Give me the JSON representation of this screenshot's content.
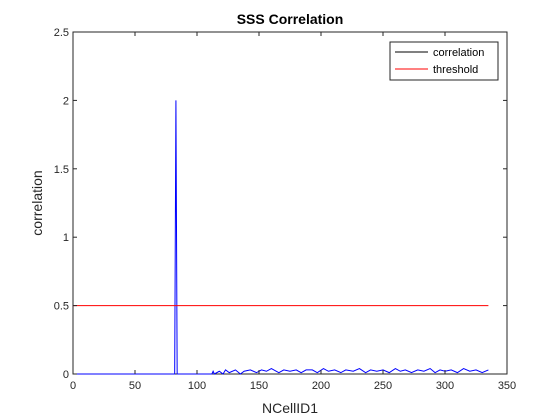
{
  "chart_data": {
    "type": "line",
    "title": "SSS Correlation",
    "xlabel": "NCellID1",
    "ylabel": "correlation",
    "xlim": [
      0,
      350
    ],
    "ylim": [
      0,
      2.5
    ],
    "xticks": [
      0,
      50,
      100,
      150,
      200,
      250,
      300,
      350
    ],
    "yticks": [
      0,
      0.5,
      1,
      1.5,
      2,
      2.5
    ],
    "xtick_labels": [
      "0",
      "50",
      "100",
      "150",
      "200",
      "250",
      "300",
      "350"
    ],
    "ytick_labels": [
      "0",
      "0.5",
      "1",
      "1.5",
      "2",
      "2.5"
    ],
    "legend_position": "top-right",
    "grid": false,
    "legend": [
      {
        "label": "correlation",
        "color": "#000000"
      },
      {
        "label": "threshold",
        "color": "#ff0000"
      }
    ],
    "series": [
      {
        "name": "correlation",
        "color": "#0000ff",
        "x": [
          0,
          82,
          83,
          84,
          85,
          112,
          113,
          114,
          118,
          121,
          123,
          126,
          131,
          135,
          138,
          143,
          148,
          152,
          156,
          160,
          166,
          170,
          175,
          180,
          184,
          188,
          193,
          197,
          202,
          206,
          211,
          216,
          220,
          226,
          231,
          236,
          240,
          245,
          250,
          255,
          260,
          264,
          268,
          273,
          278,
          283,
          288,
          292,
          296,
          300,
          305,
          310,
          315,
          320,
          325,
          330,
          335
        ],
        "y": [
          0,
          0,
          2.0,
          0,
          0,
          0,
          0.02,
          0,
          0.02,
          0,
          0.03,
          0.01,
          0.03,
          0,
          0.02,
          0.03,
          0.01,
          0.03,
          0.02,
          0.04,
          0.01,
          0.03,
          0.02,
          0.03,
          0.01,
          0.03,
          0.03,
          0.01,
          0.04,
          0.02,
          0.03,
          0.01,
          0.03,
          0.02,
          0.04,
          0.01,
          0.03,
          0.02,
          0.03,
          0.01,
          0.04,
          0.02,
          0.03,
          0.01,
          0.03,
          0.02,
          0.04,
          0.01,
          0.03,
          0.02,
          0.03,
          0.01,
          0.04,
          0.02,
          0.03,
          0.01,
          0.03
        ]
      },
      {
        "name": "threshold",
        "color": "#ff0000",
        "x": [
          0,
          335
        ],
        "y": [
          0.5,
          0.5
        ]
      }
    ]
  }
}
